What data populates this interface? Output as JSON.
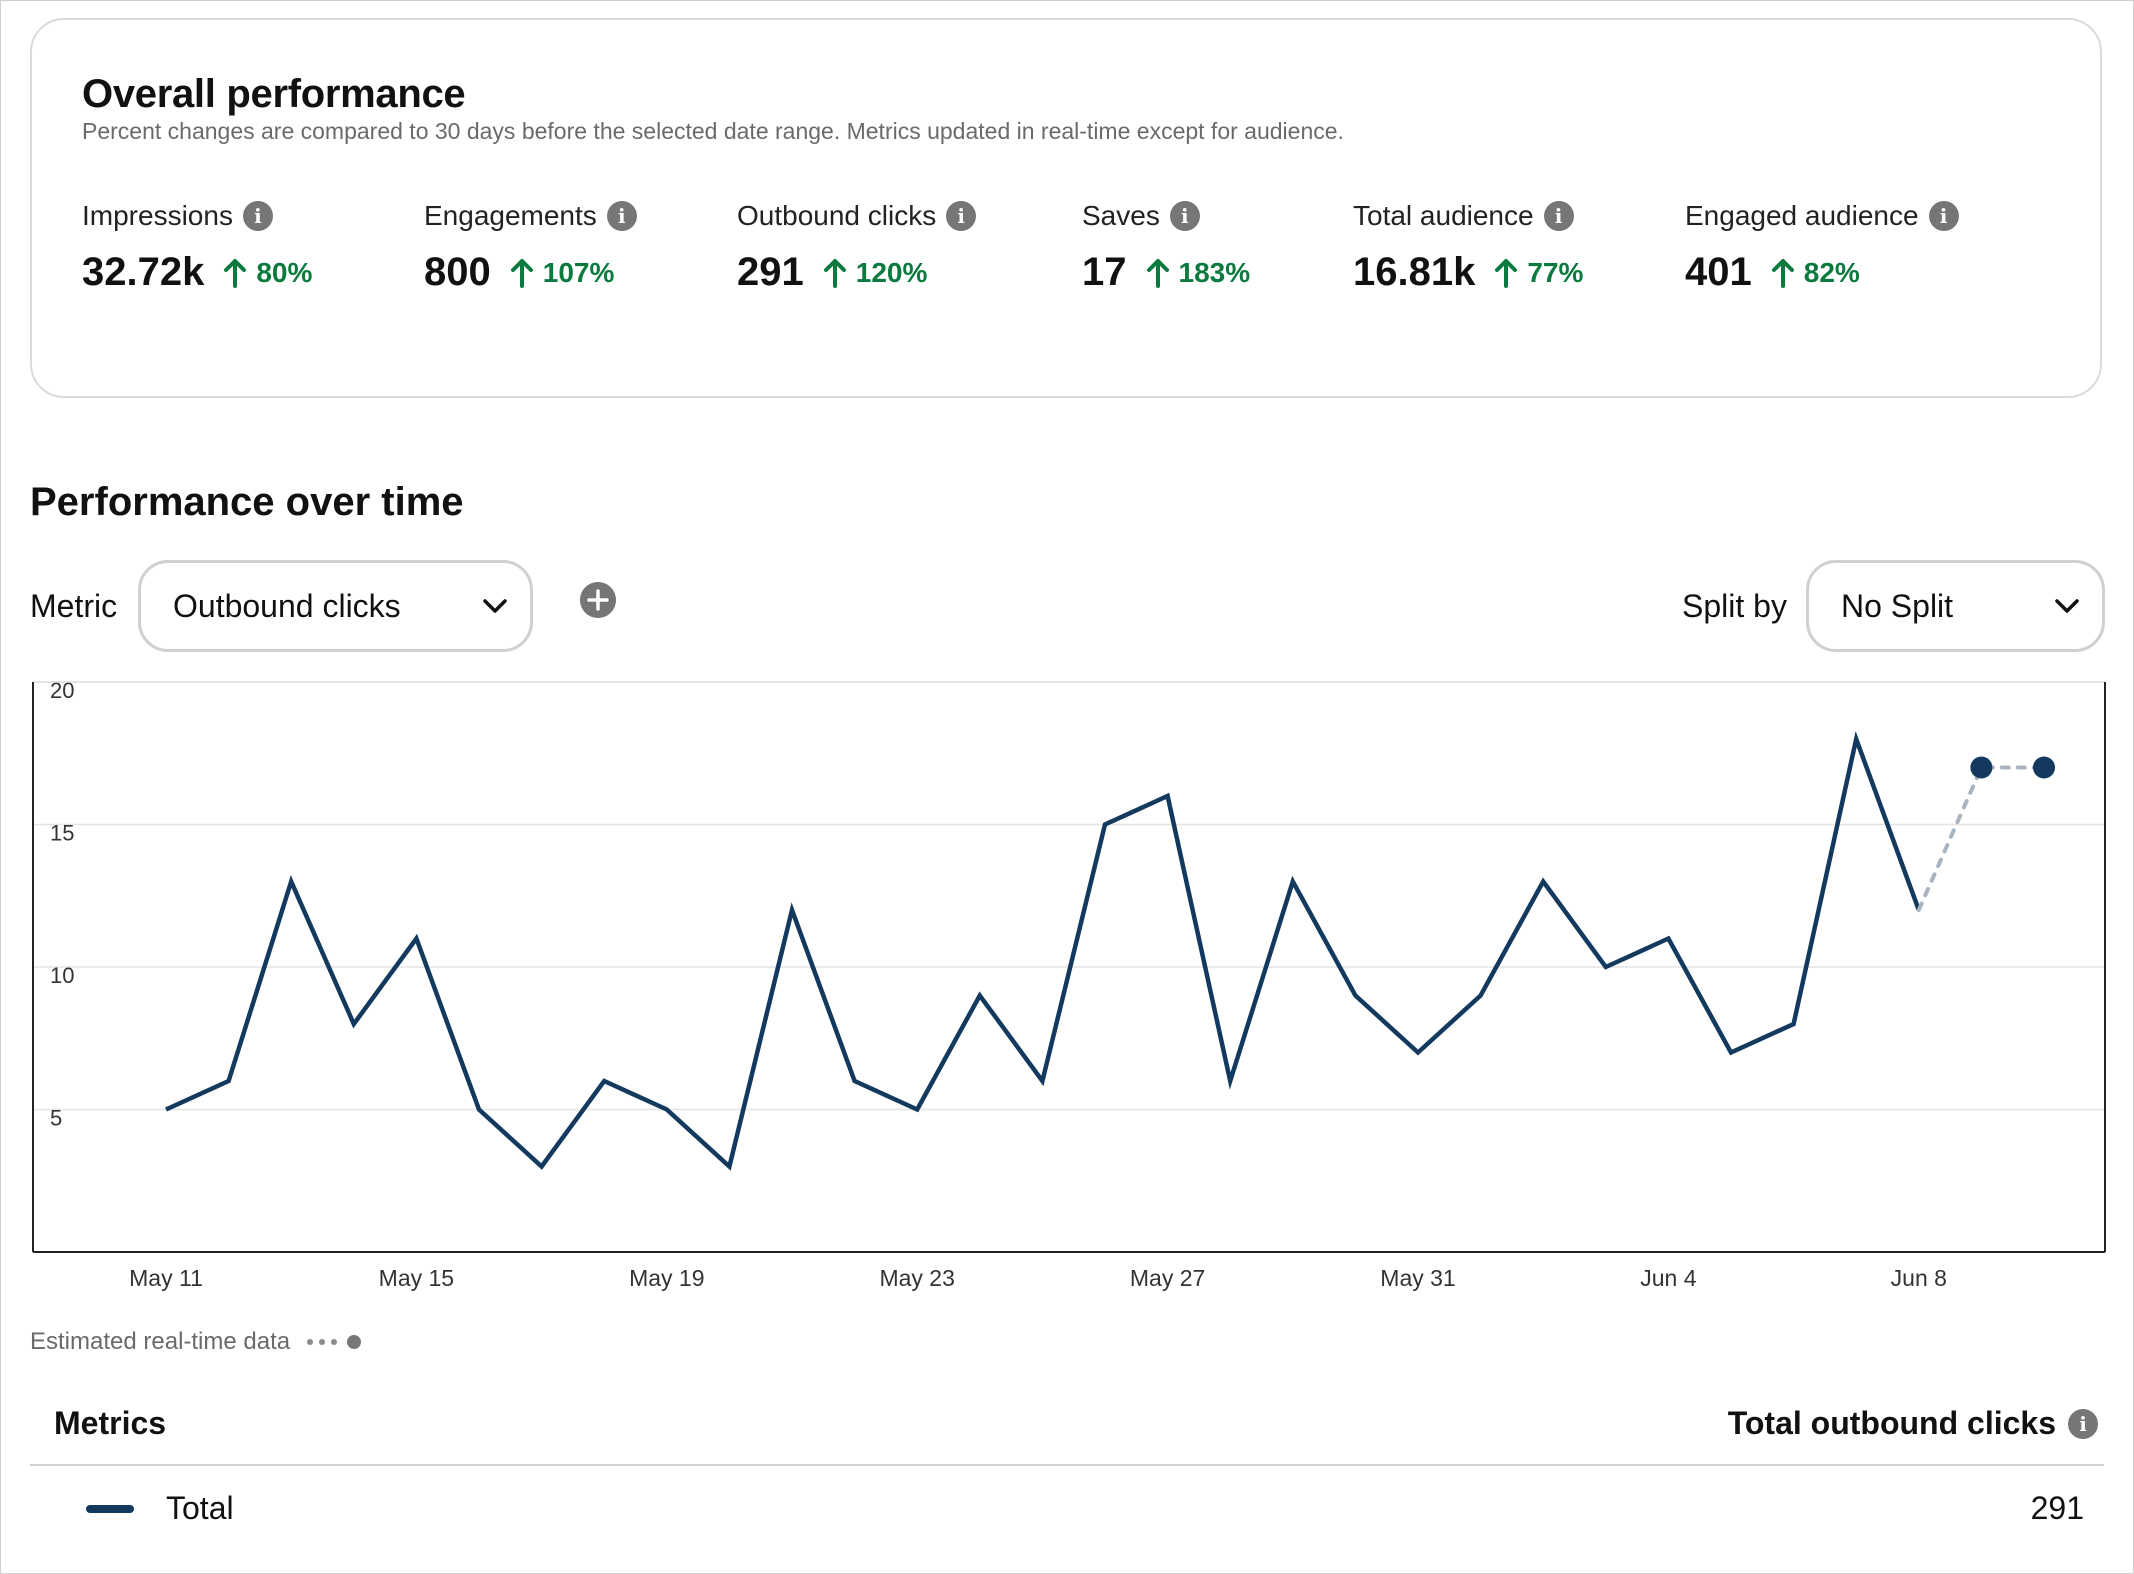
{
  "overall": {
    "title": "Overall performance",
    "subtitle": "Percent changes are compared to 30 days before the selected date range. Metrics updated in real-time except for audience.",
    "metrics": [
      {
        "label": "Impressions",
        "value": "32.72k",
        "change": "80%"
      },
      {
        "label": "Engagements",
        "value": "800",
        "change": "107%"
      },
      {
        "label": "Outbound clicks",
        "value": "291",
        "change": "120%"
      },
      {
        "label": "Saves",
        "value": "17",
        "change": "183%"
      },
      {
        "label": "Total audience",
        "value": "16.81k",
        "change": "77%"
      },
      {
        "label": "Engaged audience",
        "value": "401",
        "change": "82%"
      }
    ]
  },
  "performance": {
    "title": "Performance over time",
    "metric_label": "Metric",
    "metric_selected": "Outbound clicks",
    "split_label": "Split by",
    "split_selected": "No Split",
    "estimate_note": "Estimated real-time data"
  },
  "table": {
    "header_left": "Metrics",
    "header_right": "Total outbound clicks",
    "row_label": "Total",
    "row_value": "291"
  },
  "colors": {
    "line": "#133a5e",
    "positive": "#0a7a3e",
    "estimate": "#a8b4c0",
    "icon_gray": "#767676"
  },
  "icons": {
    "info": "info-icon",
    "up": "arrow-up-icon",
    "add": "plus-circle-icon",
    "dropdown": "chevron-down-icon"
  },
  "chart_data": {
    "type": "line",
    "x": [
      "May 10",
      "May 11",
      "May 12",
      "May 13",
      "May 14",
      "May 15",
      "May 16",
      "May 17",
      "May 18",
      "May 19",
      "May 20",
      "May 21",
      "May 22",
      "May 23",
      "May 24",
      "May 25",
      "May 26",
      "May 27",
      "May 28",
      "May 29",
      "May 30",
      "May 31",
      "Jun 1",
      "Jun 2",
      "Jun 3",
      "Jun 4",
      "Jun 5",
      "Jun 6",
      "Jun 7",
      "Jun 8",
      "Jun 9",
      "Jun 10"
    ],
    "series": [
      {
        "values": [
          null,
          5,
          6,
          13,
          8,
          11,
          5,
          3,
          6,
          5,
          3,
          12,
          6,
          5,
          9,
          6,
          15,
          16,
          6,
          13,
          9,
          7,
          9,
          13,
          10,
          11,
          7,
          8,
          18,
          12,
          null,
          null
        ]
      },
      {
        "estimated": true,
        "values": [
          null,
          null,
          null,
          null,
          null,
          null,
          null,
          null,
          null,
          null,
          null,
          null,
          null,
          null,
          null,
          null,
          null,
          null,
          null,
          null,
          null,
          null,
          null,
          null,
          null,
          null,
          null,
          null,
          null,
          12,
          17,
          17
        ]
      }
    ],
    "x_ticks": [
      "May 11",
      "May 15",
      "May 19",
      "May 23",
      "May 27",
      "May 31",
      "Jun 4",
      "Jun 8"
    ],
    "y_ticks": [
      5,
      10,
      15,
      20
    ],
    "ylim": [
      0,
      20
    ],
    "grid": true
  }
}
